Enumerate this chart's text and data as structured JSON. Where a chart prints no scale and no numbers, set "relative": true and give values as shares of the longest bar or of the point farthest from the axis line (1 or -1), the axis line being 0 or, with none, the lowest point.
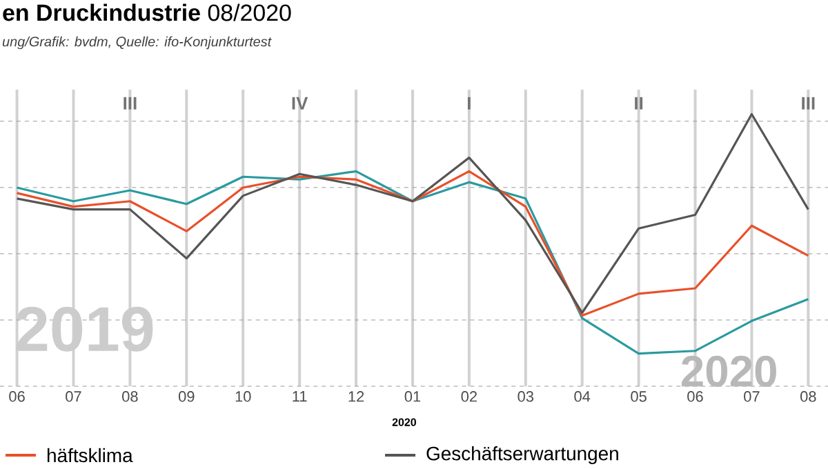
{
  "chart_data": {
    "type": "line",
    "title": "**en Druckindustrie** 08/2020",
    "subtitle": "*ung/Grafik: bvdm, Quelle: ifo-Konjunkturtest*",
    "categories": [
      "06",
      "07",
      "08",
      "09",
      "10",
      "11",
      "12",
      "01",
      "02",
      "03",
      "04",
      "05",
      "06",
      "07",
      "08"
    ],
    "relative": true,
    "grid": true,
    "legend": "bottom",
    "series": [
      {
        "color": "#2a9aa0",
        "values": [
          0.73,
          0.68,
          0.72,
          0.67,
          0.77,
          0.76,
          0.79,
          0.68,
          0.75,
          0.69,
          0.25,
          0.12,
          0.13,
          0.24,
          0.32
        ]
      },
      {
        "name": "häftsklima",
        "color": "#e8502a",
        "values": [
          0.71,
          0.66,
          0.68,
          0.57,
          0.73,
          0.77,
          0.76,
          0.68,
          0.79,
          0.66,
          0.26,
          0.34,
          0.36,
          0.59,
          0.48
        ]
      },
      {
        "name": "Geschäftserwartungen",
        "color": "#555555",
        "values": [
          0.69,
          0.65,
          0.65,
          0.47,
          0.7,
          0.78,
          0.74,
          0.68,
          0.84,
          0.61,
          0.27,
          0.58,
          0.63,
          1,
          0.65
        ]
      }
    ],
    "annotations": [
      "III",
      "IV",
      "I",
      "II",
      "III",
      "2019",
      "2020",
      "2020"
    ]
  }
}
